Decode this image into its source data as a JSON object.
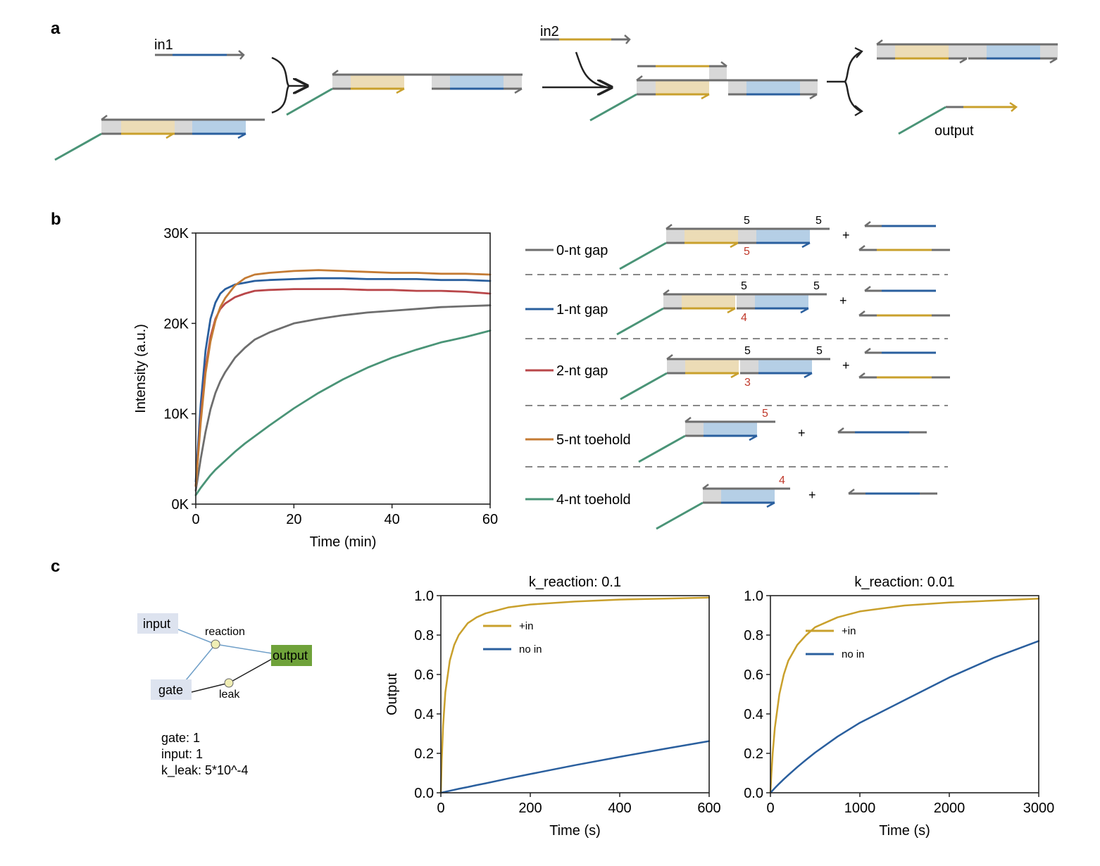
{
  "panels": {
    "a": "a",
    "b": "b",
    "c": "c"
  },
  "colors": {
    "gold": "#c9a02c",
    "blue": "#2a5f9e",
    "teal": "#4a9477",
    "gray": "#6e6e6e",
    "red": "#b9474a",
    "orange": "#c47b34",
    "gold_fill": "#ecdcb6",
    "blue_fill": "#b5cfe6",
    "gray_fill": "#d8d8d8",
    "node_fill": "#dde3ef",
    "output_fill": "#6fa23a"
  },
  "panel_a": {
    "in1_label": "in1",
    "in2_label": "in2",
    "output_label": "output"
  },
  "panel_b": {
    "legend": [
      {
        "label": "0-nt gap",
        "top": "5",
        "right": "5",
        "bottom": "5"
      },
      {
        "label": "1-nt gap",
        "top": "5",
        "right": "5",
        "bottom": "4"
      },
      {
        "label": "2-nt gap",
        "top": "5",
        "right": "5",
        "bottom": "3"
      },
      {
        "label": "5-nt toehold",
        "toehold": "5"
      },
      {
        "label": "4-nt toehold",
        "toehold": "4"
      }
    ],
    "plus": "+"
  },
  "chart_data": [
    {
      "type": "line",
      "xlabel": "Time (min)",
      "ylabel": "Intensity (a.u.)",
      "xlim": [
        0,
        60
      ],
      "ylim": [
        0,
        30000
      ],
      "xticks": [
        "0",
        "20",
        "40",
        "60"
      ],
      "yticks": [
        "0K",
        "10K",
        "20K",
        "30K"
      ],
      "x": [
        0,
        1,
        2,
        3,
        4,
        5,
        6,
        8,
        10,
        12,
        15,
        20,
        25,
        30,
        35,
        40,
        45,
        50,
        55,
        60
      ],
      "series": [
        {
          "name": "0-nt gap",
          "color": "#6e6e6e",
          "values": [
            1500,
            5000,
            8000,
            10500,
            12300,
            13600,
            14600,
            16200,
            17300,
            18200,
            19000,
            20000,
            20500,
            20900,
            21200,
            21400,
            21600,
            21800,
            21900,
            22000
          ]
        },
        {
          "name": "1-nt gap",
          "color": "#2a5f9e",
          "values": [
            2500,
            11000,
            17000,
            20500,
            22300,
            23300,
            23800,
            24300,
            24500,
            24700,
            24800,
            24900,
            25000,
            25000,
            24900,
            24900,
            24900,
            24800,
            24800,
            24700
          ]
        },
        {
          "name": "2-nt gap",
          "color": "#b9474a",
          "values": [
            2000,
            9500,
            15000,
            18500,
            20500,
            21600,
            22200,
            22900,
            23300,
            23600,
            23700,
            23800,
            23800,
            23800,
            23700,
            23700,
            23600,
            23600,
            23500,
            23300
          ]
        },
        {
          "name": "5-nt toehold",
          "color": "#c47b34",
          "values": [
            2000,
            9000,
            14500,
            18000,
            20300,
            21800,
            22800,
            24200,
            25000,
            25400,
            25600,
            25800,
            25900,
            25800,
            25700,
            25600,
            25600,
            25500,
            25500,
            25400
          ]
        },
        {
          "name": "4-nt toehold",
          "color": "#4a9477",
          "values": [
            1000,
            1800,
            2500,
            3200,
            3800,
            4300,
            4800,
            5800,
            6700,
            7500,
            8700,
            10600,
            12300,
            13800,
            15100,
            16200,
            17100,
            17900,
            18500,
            19200
          ]
        }
      ]
    },
    {
      "type": "line",
      "title": "k_reaction: 0.1",
      "xlabel": "Time (s)",
      "ylabel": "Output",
      "xlim": [
        0,
        600
      ],
      "ylim": [
        0,
        1.0
      ],
      "xticks": [
        "0",
        "200",
        "400",
        "600"
      ],
      "yticks": [
        "0.0",
        "0.2",
        "0.4",
        "0.6",
        "0.8",
        "1.0"
      ],
      "legend_position": "top-left",
      "x": [
        0,
        2,
        5,
        10,
        20,
        30,
        40,
        60,
        80,
        100,
        150,
        200,
        300,
        400,
        500,
        600
      ],
      "series": [
        {
          "name": "+in",
          "color": "#c9a02c",
          "values": [
            0,
            0.17,
            0.34,
            0.51,
            0.67,
            0.75,
            0.8,
            0.86,
            0.89,
            0.91,
            0.94,
            0.955,
            0.97,
            0.98,
            0.985,
            0.99
          ]
        },
        {
          "name": "no in",
          "color": "#2a5f9e",
          "values": [
            0,
            0.001,
            0.0025,
            0.005,
            0.01,
            0.015,
            0.02,
            0.029,
            0.039,
            0.048,
            0.072,
            0.095,
            0.14,
            0.182,
            0.223,
            0.262
          ]
        }
      ]
    },
    {
      "type": "line",
      "title": "k_reaction: 0.01",
      "xlabel": "Time (s)",
      "ylabel": "",
      "xlim": [
        0,
        3000
      ],
      "ylim": [
        0,
        1.0
      ],
      "xticks": [
        "0",
        "1000",
        "2000",
        "3000"
      ],
      "yticks": [
        "0.0",
        "0.2",
        "0.4",
        "0.6",
        "0.8",
        "1.0"
      ],
      "legend_position": "top-left",
      "x": [
        0,
        10,
        25,
        50,
        100,
        150,
        200,
        300,
        400,
        500,
        750,
        1000,
        1500,
        2000,
        2500,
        3000
      ],
      "series": [
        {
          "name": "+in",
          "color": "#c9a02c",
          "values": [
            0,
            0.09,
            0.2,
            0.33,
            0.5,
            0.6,
            0.67,
            0.75,
            0.8,
            0.84,
            0.89,
            0.92,
            0.95,
            0.965,
            0.975,
            0.985
          ]
        },
        {
          "name": "no in",
          "color": "#2a5f9e",
          "values": [
            0,
            0.005,
            0.012,
            0.024,
            0.047,
            0.069,
            0.09,
            0.13,
            0.168,
            0.204,
            0.285,
            0.355,
            0.47,
            0.585,
            0.685,
            0.77
          ]
        }
      ]
    }
  ],
  "network": {
    "nodes": {
      "input": "input",
      "gate": "gate",
      "output": "output",
      "reaction": "reaction",
      "leak": "leak"
    },
    "params": [
      "gate: 1",
      "input: 1",
      "k_leak: 5*10^-4"
    ]
  }
}
